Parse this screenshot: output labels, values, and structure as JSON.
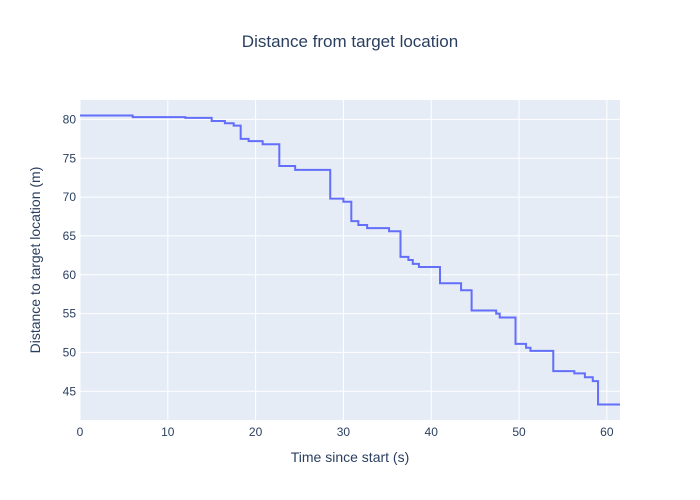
{
  "chart_data": {
    "type": "line",
    "title": "Distance from target location",
    "xlabel": "Time since start (s)",
    "ylabel": "Distance to target location (m)",
    "xlim": [
      0,
      61.5
    ],
    "ylim": [
      41.3,
      82.5
    ],
    "xticks": [
      0,
      10,
      20,
      30,
      40,
      50,
      60
    ],
    "yticks": [
      45,
      50,
      55,
      60,
      65,
      70,
      75,
      80
    ],
    "grid": true,
    "legend": "none",
    "colors": {
      "plot_bg": "#e5ecf6",
      "grid": "#ffffff",
      "line": "#636efa",
      "text": "#2a3f5f"
    },
    "series": [
      {
        "line_shape": "hv",
        "x": [
          0,
          6,
          12,
          15,
          16.5,
          17.5,
          18.3,
          19.2,
          20.8,
          22.7,
          24.5,
          28.5,
          30,
          30.9,
          31.7,
          32.7,
          35.2,
          36.5,
          37.4,
          37.9,
          38.6,
          41,
          43.4,
          44.6,
          47.4,
          47.8,
          49.6,
          50.8,
          51.3,
          53.9,
          56.3,
          57.5,
          58.4,
          59,
          61.5
        ],
        "y": [
          80.5,
          80.3,
          80.2,
          79.8,
          79.5,
          79.2,
          77.5,
          77.2,
          76.8,
          74,
          73.5,
          69.8,
          69.4,
          66.9,
          66.4,
          66,
          65.6,
          62.3,
          61.9,
          61.4,
          61,
          58.9,
          58,
          55.4,
          55,
          54.5,
          51.1,
          50.6,
          50.2,
          47.6,
          47.3,
          46.8,
          46.3,
          43.3,
          43.3
        ]
      }
    ]
  }
}
